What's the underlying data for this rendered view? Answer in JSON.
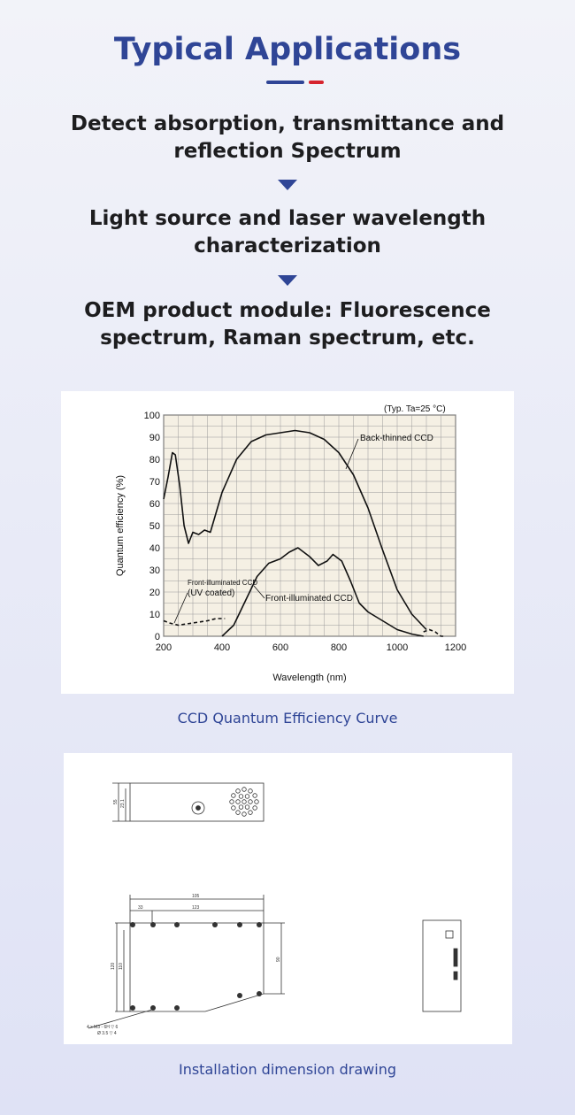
{
  "page": {
    "title": "Typical Applications",
    "applications": [
      {
        "line1": "Detect absorption, transmittance and",
        "line2": "reflection Spectrum"
      },
      {
        "line1": "Light source and laser wavelength",
        "line2": "characterization"
      },
      {
        "line1": "OEM product module: Fluorescence",
        "line2": "spectrum, Raman spectrum, etc."
      }
    ],
    "chart_caption": "CCD Quantum Efficiency Curve",
    "drawing_caption": "Installation dimension drawing"
  },
  "chart_data": {
    "type": "line",
    "title": "",
    "condition": "(Typ. Ta=25 °C)",
    "xlabel": "Wavelength (nm)",
    "ylabel": "Quantum efficiency (%)",
    "xlim": [
      200,
      1200
    ],
    "ylim": [
      0,
      100
    ],
    "x_ticks": [
      200,
      400,
      600,
      800,
      1000,
      1200
    ],
    "y_ticks": [
      0,
      10,
      20,
      30,
      40,
      50,
      60,
      70,
      80,
      90,
      100
    ],
    "grid": true,
    "series": [
      {
        "name": "Back-thinned CCD",
        "style": "solid",
        "points": [
          [
            200,
            62
          ],
          [
            215,
            72
          ],
          [
            230,
            83
          ],
          [
            240,
            82
          ],
          [
            255,
            68
          ],
          [
            270,
            50
          ],
          [
            285,
            42
          ],
          [
            300,
            47
          ],
          [
            320,
            46
          ],
          [
            340,
            48
          ],
          [
            360,
            47
          ],
          [
            380,
            56
          ],
          [
            400,
            65
          ],
          [
            450,
            80
          ],
          [
            500,
            88
          ],
          [
            550,
            91
          ],
          [
            600,
            92
          ],
          [
            650,
            93
          ],
          [
            700,
            92
          ],
          [
            750,
            89
          ],
          [
            800,
            83
          ],
          [
            850,
            73
          ],
          [
            900,
            58
          ],
          [
            950,
            39
          ],
          [
            1000,
            21
          ],
          [
            1050,
            10
          ],
          [
            1100,
            3
          ]
        ]
      },
      {
        "name": "Front-illuminated CCD",
        "style": "solid",
        "points": [
          [
            400,
            0
          ],
          [
            440,
            5
          ],
          [
            480,
            16
          ],
          [
            520,
            27
          ],
          [
            560,
            33
          ],
          [
            600,
            35
          ],
          [
            630,
            38
          ],
          [
            660,
            40
          ],
          [
            700,
            36
          ],
          [
            730,
            32
          ],
          [
            760,
            34
          ],
          [
            780,
            37
          ],
          [
            810,
            34
          ],
          [
            840,
            25
          ],
          [
            870,
            15
          ],
          [
            900,
            11
          ],
          [
            950,
            7
          ],
          [
            1000,
            3
          ],
          [
            1050,
            1
          ],
          [
            1090,
            0
          ]
        ]
      },
      {
        "name": "Front-illuminated CCD (UV coated)",
        "style": "dashed",
        "points": [
          [
            200,
            7
          ],
          [
            220,
            6
          ],
          [
            250,
            5
          ],
          [
            300,
            6
          ],
          [
            350,
            7
          ],
          [
            380,
            8
          ],
          [
            410,
            8
          ]
        ]
      },
      {
        "name": "",
        "style": "dashed",
        "points": [
          [
            1090,
            2
          ],
          [
            1110,
            3
          ],
          [
            1130,
            2
          ],
          [
            1150,
            0
          ],
          [
            1160,
            0
          ]
        ]
      }
    ],
    "annotations": [
      {
        "text": "Back-thinned CCD"
      },
      {
        "text": "Front-illuminated CCD"
      },
      {
        "text": "(UV coated)"
      },
      {
        "text": "Front-illuminated CCD"
      }
    ]
  },
  "drawing": {
    "dim_105": "105",
    "dim_33": "33",
    "dim_123": "123",
    "dim_120": "120",
    "dim_110": "110",
    "dim_90": "90",
    "dim_55": "55",
    "dim_23": "23.1",
    "hole_note": "4 x M3 - 6H ▽ 6",
    "hole_note2": "Ø 3.5 ▽ 4"
  }
}
